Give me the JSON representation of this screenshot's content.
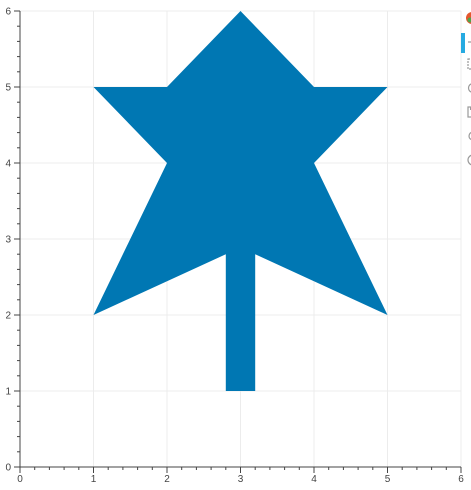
{
  "chart_data": {
    "type": "area",
    "title": "",
    "xlabel": "",
    "ylabel": "",
    "xlim": [
      0,
      6
    ],
    "ylim": [
      0,
      6
    ],
    "x_ticks": [
      "0",
      "1",
      "2",
      "3",
      "4",
      "5",
      "6"
    ],
    "y_ticks": [
      "0",
      "1",
      "2",
      "3",
      "4",
      "5",
      "6"
    ],
    "grid": true,
    "legend": "none",
    "fill_color": "#0077b3",
    "series": [
      {
        "shape": "polygon",
        "points": [
          [
            3,
            6
          ],
          [
            4,
            5
          ],
          [
            5,
            5
          ],
          [
            4,
            4
          ],
          [
            5,
            2
          ],
          [
            3.2,
            2.8
          ],
          [
            3.2,
            1
          ],
          [
            2.8,
            1
          ],
          [
            2.8,
            2.8
          ],
          [
            1,
            2
          ],
          [
            2,
            4
          ],
          [
            1,
            5
          ],
          [
            2,
            5
          ]
        ]
      }
    ]
  },
  "colors": {
    "grid": "#ececec",
    "axis": "#444444",
    "toolbar_active": "#26aae1",
    "toolbar_icon": "#9a9a9a"
  },
  "toolbar": {
    "tools": [
      {
        "name": "bokeh-logo-icon",
        "active": false
      },
      {
        "name": "pan-icon",
        "active": true
      },
      {
        "name": "box-zoom-icon",
        "active": false
      },
      {
        "name": "wheel-zoom-icon",
        "active": false
      },
      {
        "name": "save-icon",
        "active": false
      },
      {
        "name": "reset-icon",
        "active": false
      },
      {
        "name": "help-icon",
        "active": false
      }
    ]
  }
}
